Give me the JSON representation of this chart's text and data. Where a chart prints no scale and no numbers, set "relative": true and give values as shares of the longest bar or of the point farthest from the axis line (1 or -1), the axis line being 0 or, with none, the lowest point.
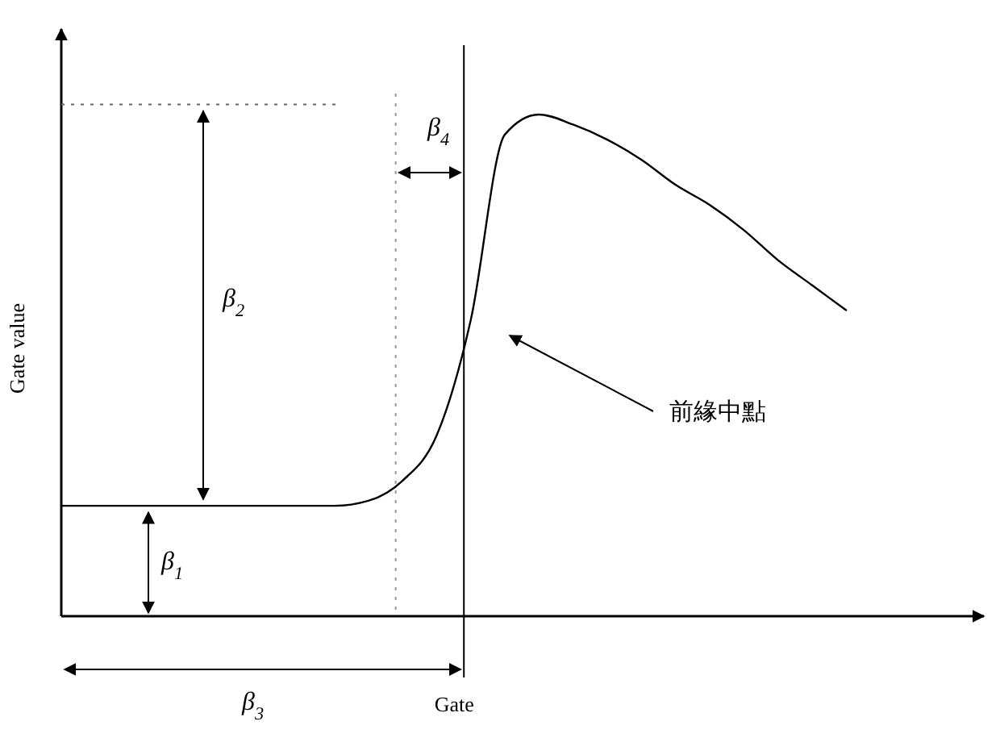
{
  "chart_data": {
    "type": "line",
    "relative": true,
    "xlabel": "Gate",
    "ylabel": "Gate value",
    "categories": [
      null,
      null,
      null,
      null,
      null,
      null,
      null,
      null,
      null,
      null,
      null,
      null,
      null,
      null,
      null,
      null,
      null,
      null,
      null,
      null,
      null,
      null,
      null,
      null,
      null,
      null,
      null
    ],
    "series": [
      {
        "color": "#000000",
        "values": [
          0.22,
          0.22,
          0.22,
          0.22,
          0.22,
          0.22,
          0.22,
          0.22,
          0.22,
          0.23,
          0.27,
          0.36,
          0.59,
          0.96,
          1,
          0.98,
          0.95,
          0.91,
          0.86,
          0.82,
          0.77,
          0.71,
          0.66,
          0.61,
          null,
          null,
          null
        ]
      }
    ],
    "ref_lines": [
      {
        "axis": "y",
        "value": 1.02,
        "color": "#666666",
        "line_style": "dotted"
      }
    ],
    "annotations": [
      "β$_{1}$",
      "β$_{2}$",
      "β$_{3}$",
      "β$_{4}$",
      "前緣中點"
    ],
    "line_style": "solid"
  }
}
